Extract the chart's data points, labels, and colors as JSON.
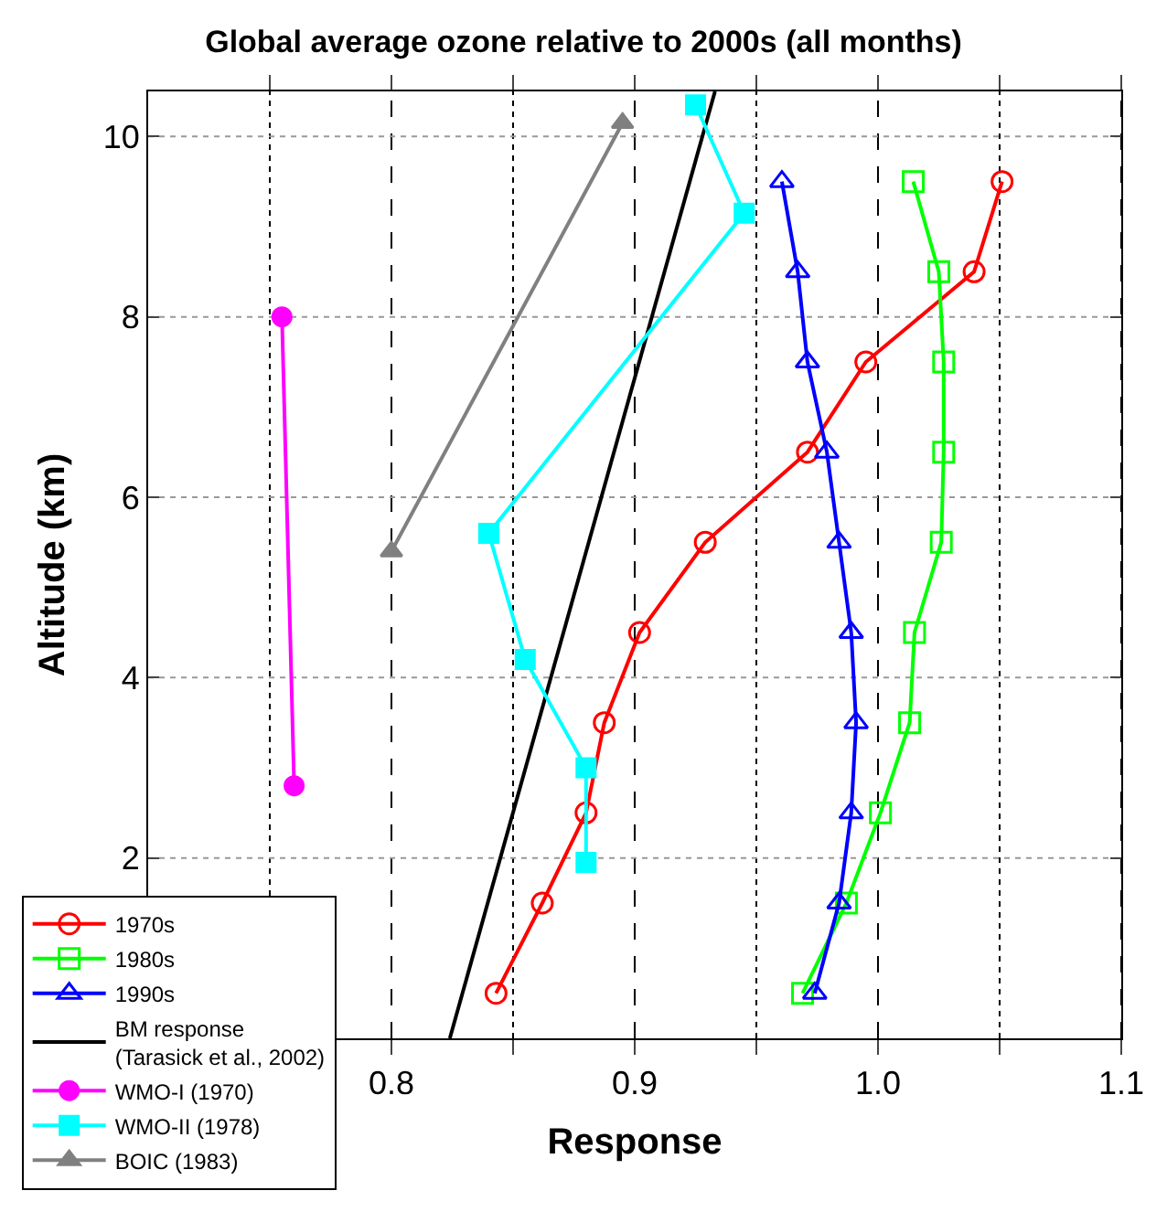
{
  "chart_data": {
    "type": "line",
    "title": "Global average ozone relative to 2000s (all months)",
    "xlabel": "Response",
    "ylabel": "Altitude (km)",
    "xlim": [
      0.7,
      1.1
    ],
    "ylim": [
      0,
      10.5
    ],
    "xticks": [
      {
        "value": 0.75,
        "label": null
      },
      0.8,
      {
        "value": 0.85,
        "label": null
      },
      0.9,
      {
        "value": 0.95,
        "label": null
      },
      {
        "value": 1.0,
        "label": "1.0"
      },
      {
        "value": 1.05,
        "label": null
      },
      1.1
    ],
    "yticks": [
      2,
      4,
      6,
      8,
      10
    ],
    "grid": true,
    "legend": "bottom left",
    "series": [
      {
        "name": "1970s",
        "color": "#ff0000",
        "marker": "circle-open",
        "x": [
          0.843,
          0.862,
          0.88,
          0.8875,
          0.902,
          0.929,
          0.971,
          0.995,
          1.0395,
          1.051
        ],
        "values": [
          0.5,
          1.5,
          2.5,
          3.5,
          4.5,
          5.5,
          6.5,
          7.5,
          8.5,
          9.5
        ]
      },
      {
        "name": "1980s",
        "color": "#00ff00",
        "marker": "square-open",
        "x": [
          0.969,
          0.987,
          1.001,
          1.013,
          1.015,
          1.026,
          1.027,
          1.027,
          1.025,
          1.0145
        ],
        "values": [
          0.5,
          1.5,
          2.5,
          3.5,
          4.5,
          5.5,
          6.5,
          7.5,
          8.5,
          9.5
        ]
      },
      {
        "name": "1990s",
        "color": "#0000ff",
        "marker": "triangle-open",
        "x": [
          0.974,
          0.984,
          0.989,
          0.991,
          0.989,
          0.984,
          0.979,
          0.971,
          0.967,
          0.9605
        ],
        "values": [
          0.5,
          1.5,
          2.5,
          3.5,
          4.5,
          5.5,
          6.5,
          7.5,
          8.5,
          9.5
        ]
      },
      {
        "name": "BM response\n(Tarasick et al., 2002)",
        "color": "#000000",
        "marker": "none",
        "x": [
          0.824,
          0.933
        ],
        "values": [
          0,
          10.5
        ]
      },
      {
        "name": "WMO-I (1970)",
        "color": "#ff00ff",
        "marker": "circle",
        "x": [
          0.76,
          0.755
        ],
        "values": [
          2.8,
          8.0
        ]
      },
      {
        "name": "WMO-II (1978)",
        "color": "#00ffff",
        "marker": "square",
        "x": [
          0.88,
          0.88,
          0.855,
          0.84,
          0.945,
          0.925
        ],
        "values": [
          1.95,
          3.0,
          4.2,
          5.6,
          9.15,
          10.35
        ]
      },
      {
        "name": "BOIC (1983)",
        "color": "#808080",
        "marker": "triangle",
        "x": [
          0.8,
          0.895
        ],
        "values": [
          5.4,
          10.15
        ]
      }
    ]
  }
}
